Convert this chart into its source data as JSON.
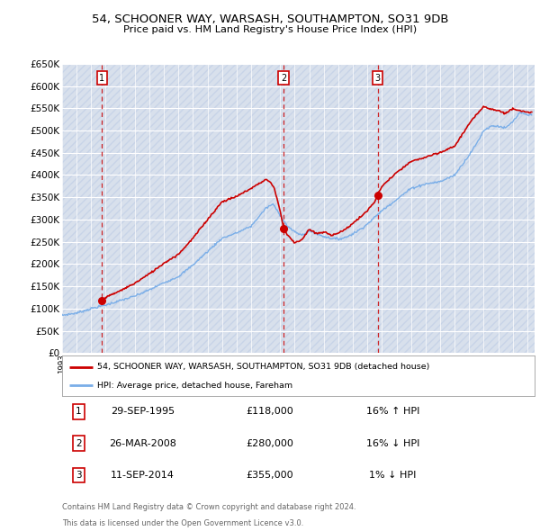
{
  "title1": "54, SCHOONER WAY, WARSASH, SOUTHAMPTON, SO31 9DB",
  "title2": "Price paid vs. HM Land Registry's House Price Index (HPI)",
  "ytick_values": [
    0,
    50000,
    100000,
    150000,
    200000,
    250000,
    300000,
    350000,
    400000,
    450000,
    500000,
    550000,
    600000,
    650000
  ],
  "bg_color": "#eaeff7",
  "hatch_color": "#d8e0ec",
  "grid_color": "#ffffff",
  "sale_points": [
    {
      "year": 1995.75,
      "price": 118000,
      "label": "1"
    },
    {
      "year": 2008.23,
      "price": 280000,
      "label": "2"
    },
    {
      "year": 2014.71,
      "price": 355000,
      "label": "3"
    }
  ],
  "sale_vline_color": "#cc0000",
  "sale_marker_color": "#cc0000",
  "legend_line1": "54, SCHOONER WAY, WARSASH, SOUTHAMPTON, SO31 9DB (detached house)",
  "legend_line2": "HPI: Average price, detached house, Fareham",
  "table_rows": [
    {
      "num": "1",
      "date": "29-SEP-1995",
      "price": "£118,000",
      "hpi": "16% ↑ HPI"
    },
    {
      "num": "2",
      "date": "26-MAR-2008",
      "price": "£280,000",
      "hpi": "16% ↓ HPI"
    },
    {
      "num": "3",
      "date": "11-SEP-2014",
      "price": "£355,000",
      "hpi": "1% ↓ HPI"
    }
  ],
  "footnote1": "Contains HM Land Registry data © Crown copyright and database right 2024.",
  "footnote2": "This data is licensed under the Open Government Licence v3.0.",
  "red_line_color": "#cc0000",
  "blue_line_color": "#7aaee8",
  "xmin": 1993,
  "xmax": 2025.5
}
